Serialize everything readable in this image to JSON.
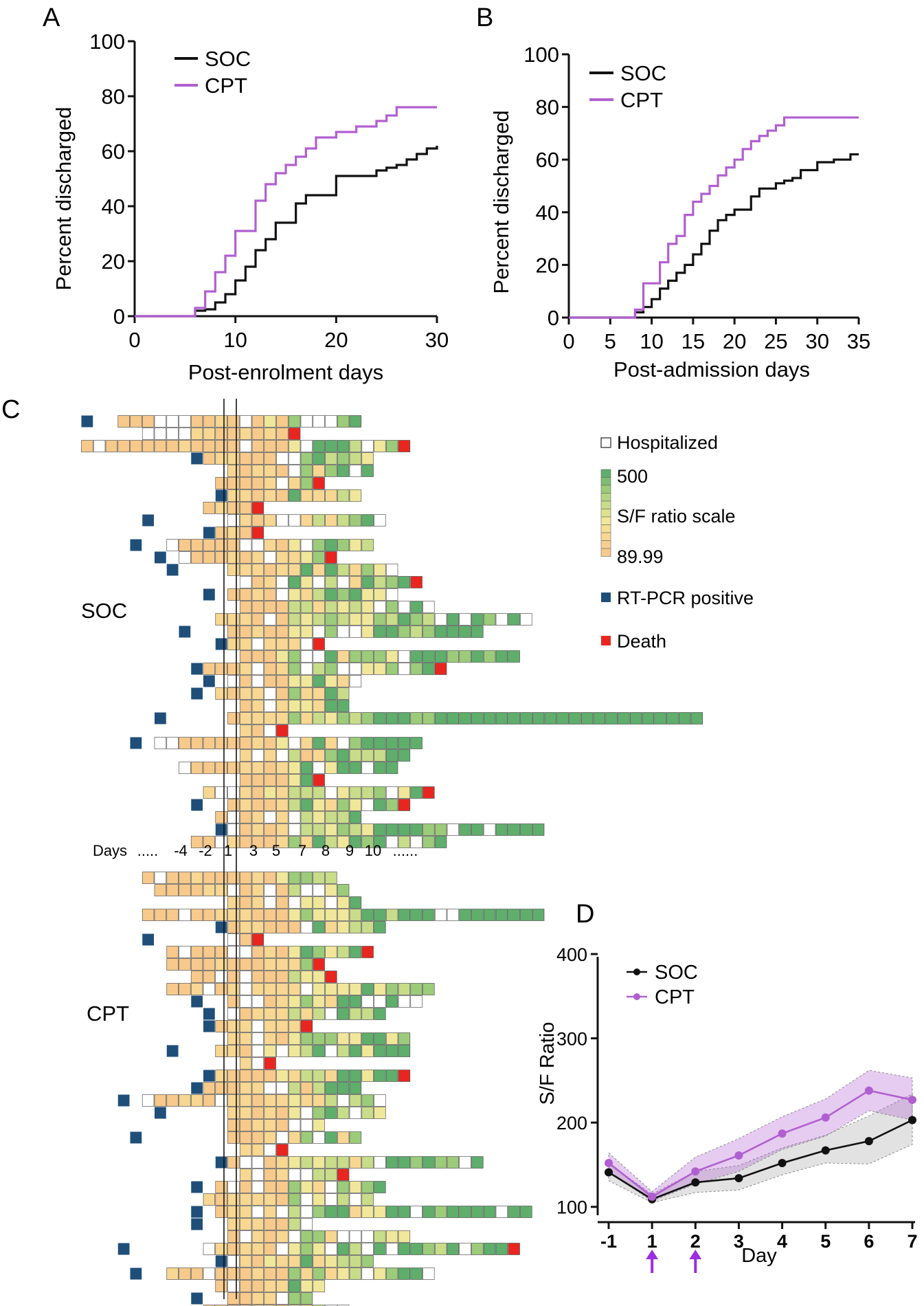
{
  "figure": {
    "panels": {
      "a": "A",
      "b": "B",
      "c": "C",
      "d": "D"
    }
  },
  "chart_data": [
    {
      "panel": "A",
      "type": "line",
      "step": true,
      "xlabel": "Post-enrolment days",
      "ylabel": "Percent discharged",
      "xlim": [
        0,
        30
      ],
      "ylim": [
        0,
        100
      ],
      "xticks": [
        0,
        10,
        20,
        30
      ],
      "yticks": [
        0,
        20,
        40,
        60,
        80,
        100
      ],
      "legend": [
        "SOC",
        "CPT"
      ],
      "series": [
        {
          "name": "SOC",
          "color": "#111111",
          "x": [
            0,
            6,
            7,
            8,
            9,
            10,
            11,
            12,
            13,
            14,
            16,
            17,
            20,
            22,
            24,
            25,
            26,
            27,
            28,
            29,
            30
          ],
          "y": [
            0,
            2,
            2.5,
            5,
            8,
            13,
            18,
            24,
            28,
            34,
            41,
            44,
            51,
            51,
            53,
            54,
            55,
            57,
            59,
            61,
            62
          ]
        },
        {
          "name": "CPT",
          "color": "#b05fd0",
          "x": [
            0,
            6,
            7,
            8,
            9,
            10,
            12,
            13,
            14,
            15,
            16,
            17,
            18,
            20,
            22,
            24,
            25,
            26,
            30
          ],
          "y": [
            0,
            3,
            9,
            16,
            22,
            31,
            42,
            48,
            52,
            55,
            58,
            61,
            65,
            67,
            69,
            71,
            73,
            76,
            76
          ]
        }
      ]
    },
    {
      "panel": "B",
      "type": "line",
      "step": true,
      "xlabel": "Post-admission days",
      "ylabel": "Percent discharged",
      "xlim": [
        0,
        35
      ],
      "ylim": [
        0,
        100
      ],
      "xticks": [
        0,
        5,
        10,
        15,
        20,
        25,
        30,
        35
      ],
      "yticks": [
        0,
        20,
        40,
        60,
        80,
        100
      ],
      "legend": [
        "SOC",
        "CPT"
      ],
      "series": [
        {
          "name": "SOC",
          "color": "#111111",
          "x": [
            0,
            8,
            9,
            10,
            11,
            12,
            13,
            14,
            15,
            16,
            17,
            18,
            19,
            20,
            22,
            23,
            25,
            26,
            27,
            28,
            30,
            32,
            34,
            35
          ],
          "y": [
            0,
            2,
            4,
            7,
            11,
            14,
            17,
            20,
            24,
            28,
            33,
            37,
            39,
            41,
            46,
            49,
            51,
            52,
            53,
            56,
            59,
            60,
            62,
            62
          ]
        },
        {
          "name": "CPT",
          "color": "#b05fd0",
          "x": [
            0,
            8,
            9,
            10,
            11,
            12,
            13,
            14,
            15,
            16,
            17,
            18,
            19,
            20,
            21,
            22,
            23,
            24,
            25,
            26,
            35
          ],
          "y": [
            0,
            3,
            13,
            13,
            21,
            28,
            31,
            39,
            44,
            47,
            50,
            54,
            57,
            60,
            64,
            67,
            69,
            71,
            73,
            76,
            76
          ]
        }
      ]
    },
    {
      "panel": "C",
      "type": "heatmap",
      "groups": [
        "SOC",
        "CPT"
      ],
      "day_labels": [
        "Days",
        ".....",
        "-4",
        "-2",
        "1",
        "3",
        "5",
        "7",
        "8",
        "9",
        "10",
        "......"
      ],
      "legend": {
        "hospitalized": "Hospitalized",
        "scale_max": "500",
        "scale_label": "S/F ratio scale",
        "scale_min": "89.99",
        "rtpcr": "RT-PCR positive",
        "death": "Death"
      },
      "colors": {
        "rtpcr": "#1f4e79",
        "death": "#e8261f",
        "hospitalized": "#ffffff",
        "scale_low": "#f7c98b",
        "scale_mid": "#f0e79a",
        "scale_high": "#5fae6c"
      },
      "rows": {
        "SOC": [
          {
            "pcr": [
              -13
            ],
            "start": -10,
            "end": 9,
            "death": false
          },
          {
            "pcr": [
              1
            ],
            "start": -8,
            "end": 4,
            "death": true
          },
          {
            "pcr": [
              -13
            ],
            "start": -13,
            "end": 13,
            "death": true
          },
          {
            "pcr": [
              -4
            ],
            "start": -3,
            "end": 10,
            "death": false
          },
          {
            "pcr": [],
            "start": -1,
            "end": 10,
            "death": false
          },
          {
            "pcr": [],
            "start": -2,
            "end": 6,
            "death": true
          },
          {
            "pcr": [
              -2
            ],
            "start": -1,
            "end": 9,
            "death": false
          },
          {
            "pcr": [
              -2
            ],
            "start": -3,
            "end": 1,
            "death": true
          },
          {
            "pcr": [
              -8
            ],
            "start": -1,
            "end": 11,
            "death": false
          },
          {
            "pcr": [
              -3
            ],
            "start": -2,
            "end": 1,
            "death": true
          },
          {
            "pcr": [
              -9
            ],
            "start": -6,
            "end": 10,
            "death": false
          },
          {
            "pcr": [
              -7
            ],
            "start": -5,
            "end": 7,
            "death": true
          },
          {
            "pcr": [
              -6
            ],
            "start": -1,
            "end": 12,
            "death": false
          },
          {
            "pcr": [],
            "start": 0,
            "end": 14,
            "death": true
          },
          {
            "pcr": [
              -3
            ],
            "start": -1,
            "end": 12,
            "death": false
          },
          {
            "pcr": [],
            "start": 0,
            "end": 15,
            "death": false
          },
          {
            "pcr": [
              -2
            ],
            "start": -2,
            "end": 23,
            "death": false
          },
          {
            "pcr": [
              -5
            ],
            "start": -1,
            "end": 19,
            "death": false
          },
          {
            "pcr": [
              -2
            ],
            "start": -1,
            "end": 6,
            "death": true
          },
          {
            "pcr": [],
            "start": 0,
            "end": 22,
            "death": false
          },
          {
            "pcr": [
              -4
            ],
            "start": -3,
            "end": 16,
            "death": true
          },
          {
            "pcr": [
              -3
            ],
            "start": -1,
            "end": 9,
            "death": false
          },
          {
            "pcr": [
              -4
            ],
            "start": -2,
            "end": 8,
            "death": false
          },
          {
            "pcr": [],
            "start": 0,
            "end": 8,
            "death": false
          },
          {
            "pcr": [
              -7
            ],
            "start": -1,
            "end": 37,
            "death": false
          },
          {
            "pcr": [],
            "start": 0,
            "end": 3,
            "death": true
          },
          {
            "pcr": [
              -9
            ],
            "start": -7,
            "end": 14,
            "death": false
          },
          {
            "pcr": [],
            "start": 0,
            "end": 13,
            "death": false
          },
          {
            "pcr": [
              -3
            ],
            "start": -5,
            "end": 12,
            "death": false
          },
          {
            "pcr": [],
            "start": 0,
            "end": 6,
            "death": true
          },
          {
            "pcr": [],
            "start": -3,
            "end": 15,
            "death": true
          },
          {
            "pcr": [
              -4
            ],
            "start": -1,
            "end": 13,
            "death": true
          },
          {
            "pcr": [
              -2
            ],
            "start": -2,
            "end": 9,
            "death": false
          },
          {
            "pcr": [
              -2
            ],
            "start": -1,
            "end": 24,
            "death": false
          },
          {
            "pcr": [],
            "start": -4,
            "end": 16,
            "death": false
          }
        ],
        "CPT": [
          {
            "pcr": [],
            "start": -8,
            "end": 7,
            "death": false
          },
          {
            "pcr": [
              -2
            ],
            "start": -7,
            "end": 8,
            "death": false
          },
          {
            "pcr": [],
            "start": -1,
            "end": 9,
            "death": false
          },
          {
            "pcr": [],
            "start": -8,
            "end": 24,
            "death": false
          },
          {
            "pcr": [
              -2
            ],
            "start": -1,
            "end": 11,
            "death": false
          },
          {
            "pcr": [
              -8
            ],
            "start": -1,
            "end": 1,
            "death": true
          },
          {
            "pcr": [],
            "start": -6,
            "end": 10,
            "death": true
          },
          {
            "pcr": [],
            "start": -6,
            "end": 6,
            "death": true
          },
          {
            "pcr": [],
            "start": -4,
            "end": 7,
            "death": true
          },
          {
            "pcr": [],
            "start": -6,
            "end": 15,
            "death": false
          },
          {
            "pcr": [
              -4
            ],
            "start": -1,
            "end": 14,
            "death": false
          },
          {
            "pcr": [
              -3
            ],
            "start": -1,
            "end": 11,
            "death": false
          },
          {
            "pcr": [
              -3
            ],
            "start": -2,
            "end": 5,
            "death": true
          },
          {
            "pcr": [],
            "start": -1,
            "end": 13,
            "death": false
          },
          {
            "pcr": [
              -6
            ],
            "start": -2,
            "end": 13,
            "death": false
          },
          {
            "pcr": [],
            "start": 0,
            "end": 2,
            "death": true
          },
          {
            "pcr": [
              -3
            ],
            "start": -2,
            "end": 13,
            "death": true
          },
          {
            "pcr": [
              -4
            ],
            "start": -3,
            "end": 9,
            "death": false
          },
          {
            "pcr": [
              -10
            ],
            "start": -8,
            "end": 11,
            "death": false
          },
          {
            "pcr": [
              -7
            ],
            "start": -1,
            "end": 11,
            "death": false
          },
          {
            "pcr": [],
            "start": -1,
            "end": 6,
            "death": false
          },
          {
            "pcr": [
              -9
            ],
            "start": -1,
            "end": 9,
            "death": false
          },
          {
            "pcr": [],
            "start": 0,
            "end": 3,
            "death": true
          },
          {
            "pcr": [
              -2
            ],
            "start": -1,
            "end": 19,
            "death": false
          },
          {
            "pcr": [],
            "start": 0,
            "end": 8,
            "death": true
          },
          {
            "pcr": [
              -4
            ],
            "start": -2,
            "end": 11,
            "death": false
          },
          {
            "pcr": [],
            "start": -3,
            "end": 10,
            "death": false
          },
          {
            "pcr": [
              -4
            ],
            "start": -2,
            "end": 23,
            "death": false
          },
          {
            "pcr": [
              -4
            ],
            "start": -1,
            "end": 5,
            "death": false
          },
          {
            "pcr": [],
            "start": -1,
            "end": 13,
            "death": false
          },
          {
            "pcr": [
              -10
            ],
            "start": -3,
            "end": 22,
            "death": true
          },
          {
            "pcr": [
              -2
            ],
            "start": -1,
            "end": 10,
            "death": false
          },
          {
            "pcr": [
              -9
            ],
            "start": -6,
            "end": 15,
            "death": false
          },
          {
            "pcr": [],
            "start": -2,
            "end": 6,
            "death": false
          },
          {
            "pcr": [
              -4
            ],
            "start": -1,
            "end": 5,
            "death": false
          },
          {
            "pcr": [],
            "start": -3,
            "end": 8,
            "death": false
          }
        ]
      }
    },
    {
      "panel": "D",
      "type": "line",
      "xlabel": "Day",
      "ylabel": "S/F Ratio",
      "xlim": [
        -1,
        7
      ],
      "ylim": [
        100,
        400
      ],
      "xticks": [
        "-1",
        "1",
        "2",
        "3",
        "4",
        "5",
        "6",
        "7"
      ],
      "yticks": [
        100,
        200,
        300,
        400
      ],
      "legend": [
        "SOC",
        "CPT"
      ],
      "arrows_at": [
        "1",
        "2"
      ],
      "series": [
        {
          "name": "SOC",
          "color": "#111111",
          "values": [
            141,
            109,
            129,
            134,
            152,
            167,
            178,
            203
          ],
          "lower": [
            131,
            105,
            117,
            120,
            138,
            152,
            151,
            174
          ],
          "upper": [
            151,
            115,
            142,
            149,
            170,
            185,
            208,
            234
          ]
        },
        {
          "name": "CPT",
          "color": "#b05fd0",
          "values": [
            152,
            112,
            142,
            161,
            187,
            206,
            238,
            227
          ],
          "lower": [
            141,
            107,
            127,
            142,
            168,
            184,
            214,
            203
          ],
          "upper": [
            164,
            118,
            159,
            181,
            207,
            228,
            262,
            253
          ]
        }
      ]
    }
  ]
}
